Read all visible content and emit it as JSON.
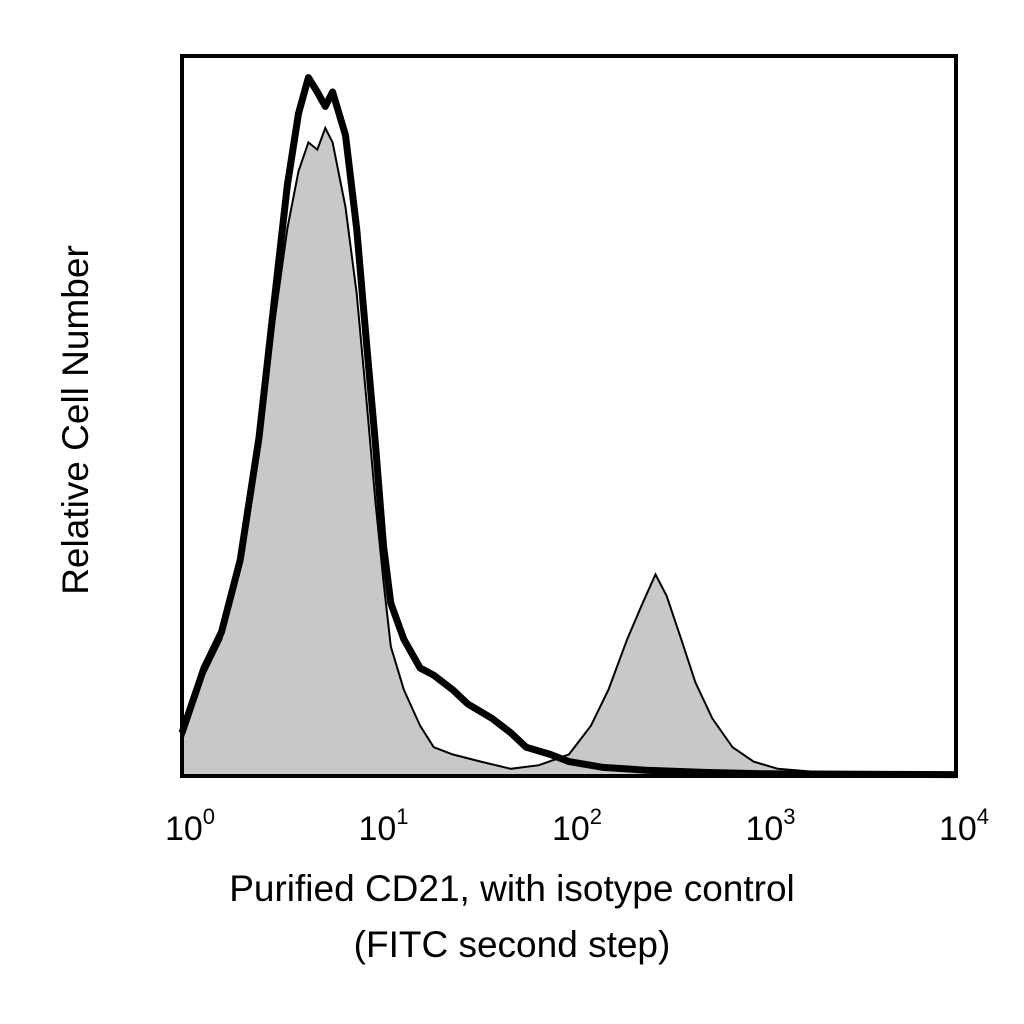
{
  "chart_data": {
    "type": "area",
    "xscale": "log",
    "xlim": [
      1,
      10000
    ],
    "ylim": [
      0,
      1
    ],
    "grid": false,
    "legend": "none",
    "xlabel": [
      "Purified CD21, with isotype control",
      "(FITC second step)"
    ],
    "ylabel": "Relative Cell Number",
    "xticks": [
      {
        "base": "10",
        "exp": "0",
        "value": 1
      },
      {
        "base": "10",
        "exp": "1",
        "value": 10
      },
      {
        "base": "10",
        "exp": "2",
        "value": 100
      },
      {
        "base": "10",
        "exp": "3",
        "value": 1000
      },
      {
        "base": "10",
        "exp": "4",
        "value": 10000
      }
    ],
    "series": [
      {
        "style": "filled",
        "color": "#c8c8c8",
        "outline": "#000000",
        "points": [
          [
            1.0,
            0.05
          ],
          [
            1.3,
            0.14
          ],
          [
            1.6,
            0.19
          ],
          [
            2.0,
            0.29
          ],
          [
            2.5,
            0.45
          ],
          [
            3.0,
            0.63
          ],
          [
            3.5,
            0.76
          ],
          [
            4.0,
            0.84
          ],
          [
            4.5,
            0.88
          ],
          [
            5.0,
            0.87
          ],
          [
            5.5,
            0.9
          ],
          [
            6.0,
            0.88
          ],
          [
            7.0,
            0.79
          ],
          [
            8.0,
            0.67
          ],
          [
            9.0,
            0.52
          ],
          [
            10.0,
            0.38
          ],
          [
            11.0,
            0.27
          ],
          [
            12.0,
            0.18
          ],
          [
            14.0,
            0.12
          ],
          [
            17.0,
            0.07
          ],
          [
            20.0,
            0.04
          ],
          [
            25.0,
            0.03
          ],
          [
            35.0,
            0.02
          ],
          [
            50.0,
            0.01
          ],
          [
            70.0,
            0.015
          ],
          [
            100.0,
            0.03
          ],
          [
            130.0,
            0.07
          ],
          [
            160.0,
            0.12
          ],
          [
            200.0,
            0.19
          ],
          [
            240.0,
            0.24
          ],
          [
            280.0,
            0.28
          ],
          [
            320.0,
            0.25
          ],
          [
            380.0,
            0.19
          ],
          [
            450.0,
            0.13
          ],
          [
            550.0,
            0.08
          ],
          [
            700.0,
            0.04
          ],
          [
            900.0,
            0.02
          ],
          [
            1200.0,
            0.01
          ],
          [
            2000.0,
            0.005
          ],
          [
            10000.0,
            0.0
          ]
        ]
      },
      {
        "style": "line",
        "color": "#000000",
        "points": [
          [
            1.0,
            0.06
          ],
          [
            1.3,
            0.15
          ],
          [
            1.6,
            0.2
          ],
          [
            2.0,
            0.3
          ],
          [
            2.5,
            0.47
          ],
          [
            3.0,
            0.66
          ],
          [
            3.5,
            0.82
          ],
          [
            4.0,
            0.92
          ],
          [
            4.5,
            0.97
          ],
          [
            5.0,
            0.95
          ],
          [
            5.5,
            0.93
          ],
          [
            6.0,
            0.95
          ],
          [
            7.0,
            0.89
          ],
          [
            8.0,
            0.76
          ],
          [
            9.0,
            0.6
          ],
          [
            10.0,
            0.46
          ],
          [
            11.0,
            0.32
          ],
          [
            12.0,
            0.24
          ],
          [
            14.0,
            0.19
          ],
          [
            17.0,
            0.15
          ],
          [
            20.0,
            0.14
          ],
          [
            25.0,
            0.12
          ],
          [
            30.0,
            0.1
          ],
          [
            40.0,
            0.08
          ],
          [
            50.0,
            0.06
          ],
          [
            60.0,
            0.04
          ],
          [
            80.0,
            0.03
          ],
          [
            100.0,
            0.02
          ],
          [
            150.0,
            0.012
          ],
          [
            250.0,
            0.008
          ],
          [
            500.0,
            0.005
          ],
          [
            1000.0,
            0.003
          ],
          [
            10000.0,
            0.002
          ]
        ]
      }
    ]
  }
}
